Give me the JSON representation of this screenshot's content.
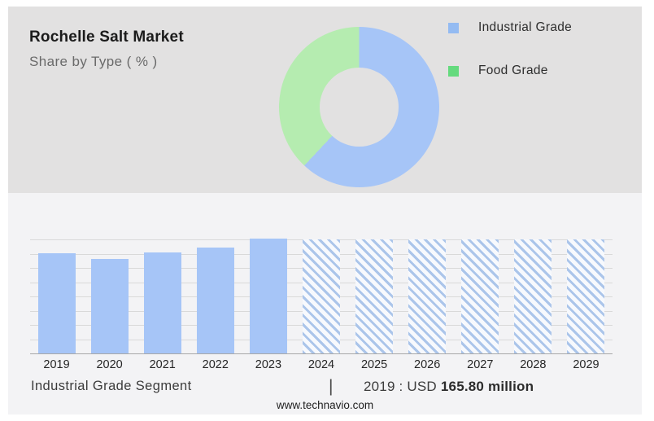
{
  "header": {
    "title": "Rochelle Salt Market",
    "subtitle": "Share by Type ( % )"
  },
  "legend": {
    "items": [
      {
        "label": "Industrial Grade",
        "color": "#94bbf2"
      },
      {
        "label": "Food Grade",
        "color": "#65da7e"
      }
    ]
  },
  "footer": {
    "segment_label": "Industrial Grade Segment",
    "separator": "|",
    "value_prefix": "2019 : USD",
    "value_bold": "165.80 million",
    "website": "www.technavio.com"
  },
  "colors": {
    "panel_top": "#e2e1e1",
    "panel_bottom": "#f3f3f5",
    "bar_blue": "#a6c5f7",
    "donut_blue": "#a6c5f7",
    "donut_green": "#b5ecb0",
    "grid": "#d9d9d9",
    "axis": "#a8a8a8",
    "hatch_stripe": "#abc5ea",
    "hatch_bg": "#f7f9fd"
  },
  "chart_data": [
    {
      "type": "pie",
      "subtype": "donut",
      "title": "Rochelle Salt Market — Share by Type ( % )",
      "labels": [
        "Industrial Grade",
        "Food Grade"
      ],
      "values": [
        62,
        38
      ],
      "unit": "%",
      "colors": [
        "#a6c5f7",
        "#b5ecb0"
      ],
      "start_angle_deg": 0,
      "direction": "clockwise",
      "legend_position": "right"
    },
    {
      "type": "bar",
      "categories": [
        "2019",
        "2020",
        "2021",
        "2022",
        "2023",
        "2024",
        "2025",
        "2026",
        "2027",
        "2028",
        "2029"
      ],
      "values": [
        165.8,
        156,
        167,
        176,
        191,
        189,
        189,
        189,
        189,
        189,
        189
      ],
      "forecast_mask": [
        false,
        false,
        false,
        false,
        false,
        true,
        true,
        true,
        true,
        true,
        true
      ],
      "title": "Industrial Grade Segment",
      "xlabel": "",
      "ylabel": "",
      "ylim": [
        0,
        189
      ],
      "grid": true,
      "gridline_count": 9,
      "bar_color": "#a6c5f7",
      "forecast_style": "hatched",
      "annotation": "2019 : USD 165.80 million",
      "legend_position": "none"
    }
  ]
}
